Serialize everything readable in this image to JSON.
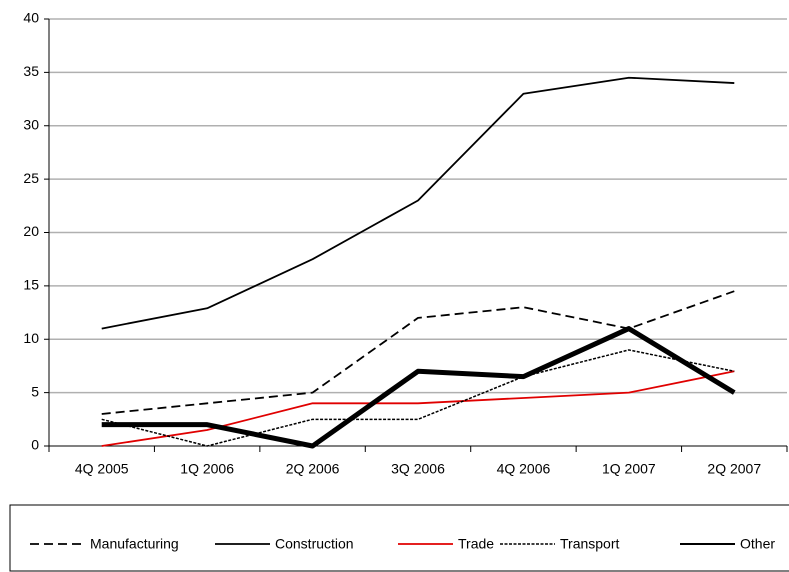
{
  "chart_data": {
    "type": "line",
    "categories": [
      "4Q 2005",
      "1Q 2006",
      "2Q 2006",
      "3Q 2006",
      "4Q 2006",
      "1Q 2007",
      "2Q 2007"
    ],
    "series": [
      {
        "name": "Manufacturing",
        "color": "#000000",
        "dash": "9,5",
        "width": 1.8,
        "values": [
          3,
          4,
          5,
          12,
          13,
          11,
          14.5
        ]
      },
      {
        "name": "Construction",
        "color": "#000000",
        "dash": "none",
        "width": 1.8,
        "values": [
          11,
          12.9,
          17.5,
          23,
          33,
          34.5,
          34
        ]
      },
      {
        "name": "Trade",
        "color": "#e00000",
        "dash": "none",
        "width": 1.8,
        "values": [
          0,
          1.5,
          4,
          4,
          4.5,
          5,
          7
        ]
      },
      {
        "name": "Transport",
        "color": "#000000",
        "dash": "3,1.5",
        "width": 1.5,
        "values": [
          2.5,
          0,
          2.5,
          2.5,
          6.5,
          9,
          7
        ]
      },
      {
        "name": "Other",
        "color": "#000000",
        "dash": "none",
        "width": 5,
        "values": [
          2,
          2,
          0,
          7,
          6.5,
          11,
          5
        ]
      }
    ],
    "ylim": [
      0,
      40
    ],
    "yticks": [
      0,
      5,
      10,
      15,
      20,
      25,
      30,
      35,
      40
    ],
    "grid": true,
    "legend": "bottom"
  }
}
